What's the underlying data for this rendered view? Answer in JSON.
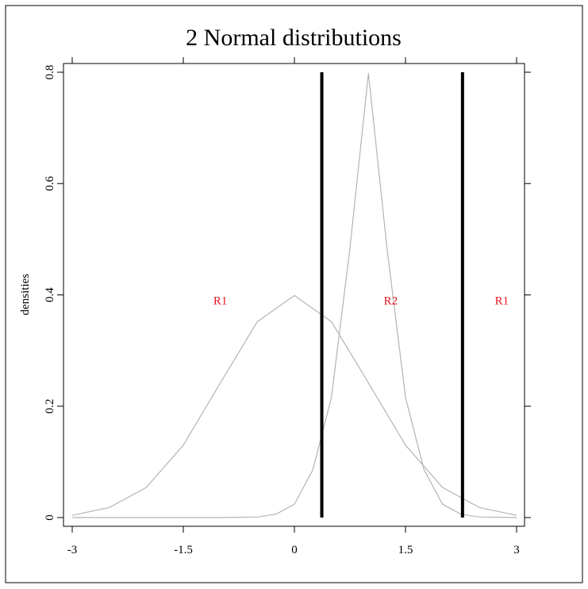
{
  "chart_data": {
    "type": "line",
    "title": "2 Normal distributions",
    "xlabel": "",
    "ylabel": "densities",
    "xlim": [
      -3,
      3
    ],
    "ylim": [
      0,
      0.8
    ],
    "x_ticks": [
      "-3",
      "-1.5",
      "0",
      "1.5",
      "3"
    ],
    "y_ticks": [
      "0",
      "0.2",
      "0.4",
      "0.6",
      "0.8"
    ],
    "series": [
      {
        "style": "thin gray curve",
        "x": [
          -3.0,
          -2.5,
          -2.0,
          -1.5,
          -1.0,
          -0.5,
          0.0,
          0.5,
          1.0,
          1.5,
          2.0,
          2.5,
          3.0
        ],
        "y": [
          0.004,
          0.018,
          0.054,
          0.13,
          0.242,
          0.352,
          0.399,
          0.352,
          0.242,
          0.13,
          0.054,
          0.018,
          0.004
        ]
      },
      {
        "style": "thin gray curve",
        "x": [
          -3.0,
          -1.0,
          -0.5,
          -0.25,
          0.0,
          0.25,
          0.5,
          0.75,
          1.0,
          1.25,
          1.5,
          1.75,
          2.0,
          2.25,
          2.5,
          3.0
        ],
        "y": [
          0.0,
          0.0,
          0.001,
          0.006,
          0.024,
          0.086,
          0.216,
          0.484,
          0.798,
          0.484,
          0.216,
          0.086,
          0.024,
          0.006,
          0.001,
          0.0
        ]
      }
    ],
    "vertical_lines": [
      {
        "x": 0.37,
        "y_from": 0,
        "y_to": 0.8
      },
      {
        "x": 2.27,
        "y_from": 0,
        "y_to": 0.8
      }
    ],
    "annotations": [
      {
        "text": "R1",
        "x": -1.0,
        "y": 0.39
      },
      {
        "text": "R2",
        "x": 1.3,
        "y": 0.39
      },
      {
        "text": "R1",
        "x": 2.8,
        "y": 0.39
      }
    ],
    "colors": {
      "curve": "#b4b4b4",
      "threshold_line": "#000000",
      "region_label": "#e8141c"
    },
    "grid": false,
    "legend": "none"
  }
}
